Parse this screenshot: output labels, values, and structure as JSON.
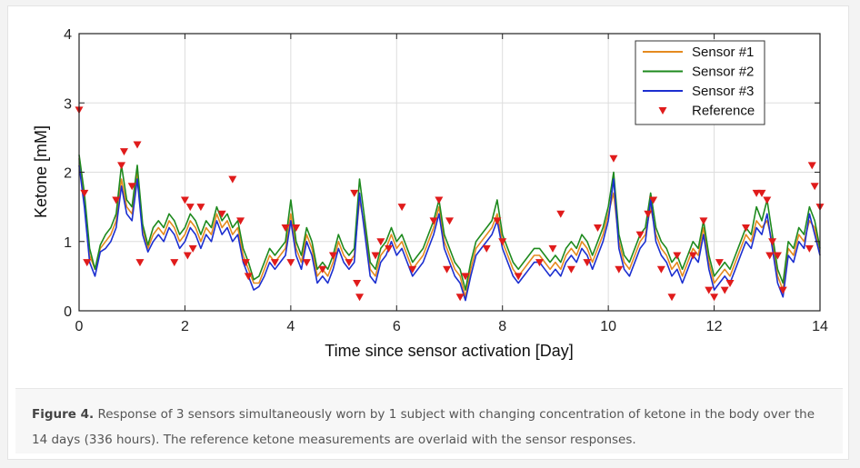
{
  "caption": {
    "label": "Figure 4.",
    "text": " Response of 3 sensors simultaneously worn by 1 subject with changing concentration of ketone in the body over the 14 days (336 hours). The reference ketone measurements are overlaid with the sensor responses."
  },
  "chart_data": {
    "type": "line",
    "title": "",
    "xlabel": "Time since sensor activation [Day]",
    "ylabel": "Ketone [mM]",
    "xlim": [
      0,
      14
    ],
    "ylim": [
      0,
      4
    ],
    "xticks": [
      0,
      2,
      4,
      6,
      8,
      10,
      12,
      14
    ],
    "yticks": [
      0,
      1,
      2,
      3,
      4
    ],
    "grid": true,
    "legend_position": "top-right",
    "colors": {
      "Sensor #1": "#e58a1f",
      "Sensor #2": "#1e8a1e",
      "Sensor #3": "#1c2fd0",
      "Reference": "#e01b1b"
    },
    "x": [
      0.0,
      0.1,
      0.2,
      0.3,
      0.4,
      0.5,
      0.6,
      0.7,
      0.8,
      0.9,
      1.0,
      1.1,
      1.2,
      1.3,
      1.4,
      1.5,
      1.6,
      1.7,
      1.8,
      1.9,
      2.0,
      2.1,
      2.2,
      2.3,
      2.4,
      2.5,
      2.6,
      2.7,
      2.8,
      2.9,
      3.0,
      3.1,
      3.2,
      3.3,
      3.4,
      3.5,
      3.6,
      3.7,
      3.8,
      3.9,
      4.0,
      4.1,
      4.2,
      4.3,
      4.4,
      4.5,
      4.6,
      4.7,
      4.8,
      4.9,
      5.0,
      5.1,
      5.2,
      5.3,
      5.4,
      5.5,
      5.6,
      5.7,
      5.8,
      5.9,
      6.0,
      6.1,
      6.2,
      6.3,
      6.4,
      6.5,
      6.6,
      6.7,
      6.8,
      6.9,
      7.0,
      7.1,
      7.2,
      7.3,
      7.4,
      7.5,
      7.6,
      7.7,
      7.8,
      7.9,
      8.0,
      8.1,
      8.2,
      8.3,
      8.4,
      8.5,
      8.6,
      8.7,
      8.8,
      8.9,
      9.0,
      9.1,
      9.2,
      9.3,
      9.4,
      9.5,
      9.6,
      9.7,
      9.8,
      9.9,
      10.0,
      10.1,
      10.2,
      10.3,
      10.4,
      10.5,
      10.6,
      10.7,
      10.8,
      10.9,
      11.0,
      11.1,
      11.2,
      11.3,
      11.4,
      11.5,
      11.6,
      11.7,
      11.8,
      11.9,
      12.0,
      12.1,
      12.2,
      12.3,
      12.4,
      12.5,
      12.6,
      12.7,
      12.8,
      12.9,
      13.0,
      13.1,
      13.2,
      13.3,
      13.4,
      13.5,
      13.6,
      13.7,
      13.8,
      13.9,
      14.0
    ],
    "series": [
      {
        "name": "Sensor #1",
        "values": [
          2.2,
          1.6,
          0.8,
          0.6,
          0.9,
          1.0,
          1.1,
          1.3,
          1.9,
          1.5,
          1.4,
          2.0,
          1.2,
          0.9,
          1.1,
          1.2,
          1.1,
          1.3,
          1.2,
          1.0,
          1.1,
          1.3,
          1.2,
          1.0,
          1.2,
          1.1,
          1.4,
          1.2,
          1.3,
          1.1,
          1.2,
          0.8,
          0.6,
          0.4,
          0.4,
          0.6,
          0.8,
          0.7,
          0.8,
          0.9,
          1.4,
          0.9,
          0.7,
          1.1,
          0.9,
          0.5,
          0.6,
          0.5,
          0.7,
          1.0,
          0.8,
          0.7,
          0.8,
          1.6,
          1.2,
          0.6,
          0.5,
          0.8,
          0.9,
          1.1,
          0.9,
          1.0,
          0.8,
          0.6,
          0.7,
          0.8,
          1.0,
          1.2,
          1.5,
          1.0,
          0.8,
          0.6,
          0.5,
          0.2,
          0.6,
          0.9,
          1.0,
          1.1,
          1.2,
          1.4,
          1.0,
          0.8,
          0.6,
          0.5,
          0.6,
          0.7,
          0.8,
          0.8,
          0.7,
          0.6,
          0.7,
          0.6,
          0.8,
          0.9,
          0.8,
          1.0,
          0.9,
          0.7,
          0.9,
          1.1,
          1.4,
          1.7,
          1.0,
          0.7,
          0.6,
          0.8,
          1.0,
          1.1,
          1.5,
          1.1,
          0.9,
          0.8,
          0.6,
          0.7,
          0.5,
          0.7,
          0.9,
          0.8,
          1.2,
          0.7,
          0.4,
          0.5,
          0.6,
          0.5,
          0.7,
          0.9,
          1.1,
          1.0,
          1.3,
          1.2,
          1.3,
          1.0,
          0.5,
          0.3,
          0.9,
          0.8,
          1.1,
          1.0,
          1.3,
          1.2,
          0.8
        ]
      },
      {
        "name": "Sensor #2",
        "values": [
          2.25,
          1.7,
          0.9,
          0.6,
          0.95,
          1.1,
          1.2,
          1.4,
          2.1,
          1.6,
          1.5,
          2.1,
          1.25,
          0.95,
          1.2,
          1.3,
          1.2,
          1.4,
          1.3,
          1.1,
          1.2,
          1.4,
          1.3,
          1.1,
          1.3,
          1.2,
          1.5,
          1.3,
          1.4,
          1.2,
          1.3,
          0.9,
          0.7,
          0.45,
          0.5,
          0.7,
          0.9,
          0.8,
          0.9,
          1.0,
          1.6,
          1.0,
          0.8,
          1.2,
          1.0,
          0.6,
          0.7,
          0.6,
          0.8,
          1.1,
          0.9,
          0.8,
          0.9,
          1.9,
          1.3,
          0.7,
          0.6,
          0.9,
          1.0,
          1.2,
          1.0,
          1.1,
          0.9,
          0.7,
          0.8,
          0.9,
          1.1,
          1.3,
          1.6,
          1.1,
          0.9,
          0.7,
          0.6,
          0.3,
          0.7,
          1.0,
          1.1,
          1.2,
          1.3,
          1.6,
          1.1,
          0.9,
          0.7,
          0.6,
          0.7,
          0.8,
          0.9,
          0.9,
          0.8,
          0.7,
          0.8,
          0.7,
          0.9,
          1.0,
          0.9,
          1.1,
          1.0,
          0.8,
          1.0,
          1.2,
          1.5,
          2.0,
          1.1,
          0.8,
          0.7,
          0.9,
          1.1,
          1.2,
          1.7,
          1.2,
          1.0,
          0.9,
          0.7,
          0.8,
          0.6,
          0.8,
          1.0,
          0.9,
          1.3,
          0.8,
          0.5,
          0.6,
          0.7,
          0.6,
          0.8,
          1.0,
          1.2,
          1.1,
          1.5,
          1.3,
          1.6,
          1.1,
          0.6,
          0.4,
          1.0,
          0.9,
          1.2,
          1.1,
          1.5,
          1.3,
          0.9
        ]
      },
      {
        "name": "Sensor #3",
        "values": [
          2.1,
          1.5,
          0.7,
          0.5,
          0.85,
          0.9,
          1.0,
          1.2,
          1.8,
          1.4,
          1.3,
          1.9,
          1.1,
          0.85,
          1.0,
          1.1,
          1.0,
          1.2,
          1.1,
          0.9,
          1.0,
          1.2,
          1.1,
          0.9,
          1.1,
          1.0,
          1.3,
          1.1,
          1.2,
          1.0,
          1.1,
          0.7,
          0.5,
          0.3,
          0.35,
          0.5,
          0.7,
          0.6,
          0.7,
          0.8,
          1.3,
          0.8,
          0.6,
          1.0,
          0.8,
          0.4,
          0.5,
          0.4,
          0.6,
          0.9,
          0.7,
          0.6,
          0.7,
          1.7,
          1.1,
          0.5,
          0.4,
          0.7,
          0.8,
          1.0,
          0.8,
          0.9,
          0.7,
          0.5,
          0.6,
          0.7,
          0.9,
          1.1,
          1.4,
          0.9,
          0.7,
          0.5,
          0.4,
          0.15,
          0.5,
          0.8,
          0.9,
          1.0,
          1.1,
          1.3,
          0.9,
          0.7,
          0.5,
          0.4,
          0.5,
          0.6,
          0.7,
          0.7,
          0.6,
          0.5,
          0.6,
          0.5,
          0.7,
          0.8,
          0.7,
          0.9,
          0.8,
          0.6,
          0.8,
          1.0,
          1.3,
          1.9,
          0.9,
          0.6,
          0.5,
          0.7,
          0.9,
          1.0,
          1.6,
          1.0,
          0.8,
          0.7,
          0.5,
          0.6,
          0.4,
          0.6,
          0.8,
          0.7,
          1.1,
          0.6,
          0.3,
          0.4,
          0.5,
          0.4,
          0.6,
          0.8,
          1.0,
          0.9,
          1.2,
          1.1,
          1.4,
          0.9,
          0.4,
          0.2,
          0.8,
          0.7,
          1.0,
          0.9,
          1.4,
          1.1,
          0.8
        ]
      }
    ],
    "reference": {
      "name": "Reference",
      "points": [
        {
          "x": 0.0,
          "y": 2.9
        },
        {
          "x": 0.1,
          "y": 1.7
        },
        {
          "x": 0.15,
          "y": 0.7
        },
        {
          "x": 0.7,
          "y": 1.6
        },
        {
          "x": 0.8,
          "y": 2.1
        },
        {
          "x": 0.85,
          "y": 2.3
        },
        {
          "x": 1.0,
          "y": 1.8
        },
        {
          "x": 1.1,
          "y": 2.4
        },
        {
          "x": 1.15,
          "y": 0.7
        },
        {
          "x": 1.8,
          "y": 0.7
        },
        {
          "x": 2.0,
          "y": 1.6
        },
        {
          "x": 2.1,
          "y": 1.5
        },
        {
          "x": 2.05,
          "y": 0.8
        },
        {
          "x": 2.15,
          "y": 0.9
        },
        {
          "x": 2.3,
          "y": 1.5
        },
        {
          "x": 2.7,
          "y": 1.4
        },
        {
          "x": 2.9,
          "y": 1.9
        },
        {
          "x": 3.05,
          "y": 1.3
        },
        {
          "x": 3.15,
          "y": 0.7
        },
        {
          "x": 3.2,
          "y": 0.5
        },
        {
          "x": 3.7,
          "y": 0.7
        },
        {
          "x": 3.9,
          "y": 1.2
        },
        {
          "x": 4.0,
          "y": 0.7
        },
        {
          "x": 4.1,
          "y": 1.2
        },
        {
          "x": 4.3,
          "y": 0.7
        },
        {
          "x": 4.6,
          "y": 0.6
        },
        {
          "x": 4.8,
          "y": 0.8
        },
        {
          "x": 5.1,
          "y": 0.7
        },
        {
          "x": 5.2,
          "y": 1.7
        },
        {
          "x": 5.25,
          "y": 0.4
        },
        {
          "x": 5.3,
          "y": 0.2
        },
        {
          "x": 5.6,
          "y": 0.8
        },
        {
          "x": 5.7,
          "y": 1.0
        },
        {
          "x": 5.85,
          "y": 0.9
        },
        {
          "x": 6.1,
          "y": 1.5
        },
        {
          "x": 6.3,
          "y": 0.6
        },
        {
          "x": 6.7,
          "y": 1.3
        },
        {
          "x": 6.8,
          "y": 1.6
        },
        {
          "x": 6.95,
          "y": 0.6
        },
        {
          "x": 7.0,
          "y": 1.3
        },
        {
          "x": 7.2,
          "y": 0.2
        },
        {
          "x": 7.3,
          "y": 0.5
        },
        {
          "x": 7.7,
          "y": 0.9
        },
        {
          "x": 7.9,
          "y": 1.3
        },
        {
          "x": 8.0,
          "y": 1.0
        },
        {
          "x": 8.3,
          "y": 0.5
        },
        {
          "x": 8.7,
          "y": 0.7
        },
        {
          "x": 8.95,
          "y": 0.9
        },
        {
          "x": 9.1,
          "y": 1.4
        },
        {
          "x": 9.3,
          "y": 0.6
        },
        {
          "x": 9.6,
          "y": 0.7
        },
        {
          "x": 9.8,
          "y": 1.2
        },
        {
          "x": 10.1,
          "y": 2.2
        },
        {
          "x": 10.2,
          "y": 0.6
        },
        {
          "x": 10.6,
          "y": 1.1
        },
        {
          "x": 10.75,
          "y": 1.4
        },
        {
          "x": 10.85,
          "y": 1.6
        },
        {
          "x": 11.0,
          "y": 0.6
        },
        {
          "x": 11.2,
          "y": 0.2
        },
        {
          "x": 11.3,
          "y": 0.8
        },
        {
          "x": 11.6,
          "y": 0.8
        },
        {
          "x": 11.8,
          "y": 1.3
        },
        {
          "x": 11.9,
          "y": 0.3
        },
        {
          "x": 12.0,
          "y": 0.2
        },
        {
          "x": 12.1,
          "y": 0.7
        },
        {
          "x": 12.2,
          "y": 0.3
        },
        {
          "x": 12.3,
          "y": 0.4
        },
        {
          "x": 12.6,
          "y": 1.2
        },
        {
          "x": 12.8,
          "y": 1.7
        },
        {
          "x": 12.9,
          "y": 1.7
        },
        {
          "x": 13.0,
          "y": 1.6
        },
        {
          "x": 13.05,
          "y": 0.8
        },
        {
          "x": 13.1,
          "y": 1.0
        },
        {
          "x": 13.2,
          "y": 0.8
        },
        {
          "x": 13.3,
          "y": 0.3
        },
        {
          "x": 13.8,
          "y": 0.9
        },
        {
          "x": 13.85,
          "y": 2.1
        },
        {
          "x": 13.9,
          "y": 1.8
        },
        {
          "x": 14.0,
          "y": 1.5
        }
      ]
    }
  }
}
